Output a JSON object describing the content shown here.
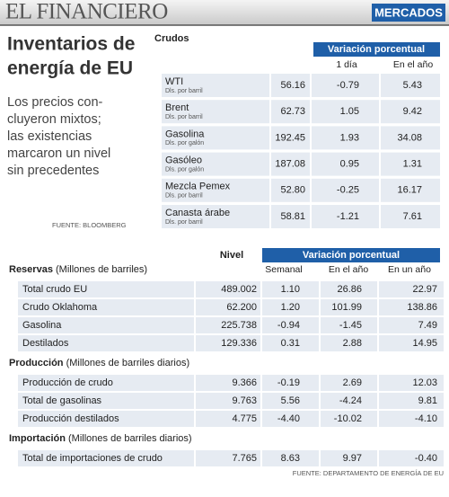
{
  "header": {
    "brand": "EL FINANCIERO",
    "section": "MERCADOS"
  },
  "title_lines": [
    "Inventarios de",
    "energía de EU"
  ],
  "description_lines": [
    "Los precios con-",
    "cluyeron mixtos;",
    "las existencias",
    "marcaron un nivel",
    "sin precedentes"
  ],
  "source_top": "FUENTE: BLOOMBERG",
  "crudos": {
    "label": "Crudos",
    "group_header": "Variación porcentual",
    "columns": [
      "1 día",
      "En el año"
    ],
    "rows": [
      {
        "name": "WTI",
        "unit": "Dls. por barril",
        "values": [
          "56.16",
          "-0.79",
          "5.43"
        ]
      },
      {
        "name": "Brent",
        "unit": "Dls. por barril",
        "values": [
          "62.73",
          "1.05",
          "9.42"
        ]
      },
      {
        "name": "Gasolina",
        "unit": "Dls. por galón",
        "values": [
          "192.45",
          "1.93",
          "34.08"
        ]
      },
      {
        "name": "Gasóleo",
        "unit": "Dls. por galón",
        "values": [
          "187.08",
          "0.95",
          "1.31"
        ]
      },
      {
        "name": "Mezcla Pemex",
        "unit": "Dls. por barril",
        "values": [
          "52.80",
          "-0.25",
          "16.17"
        ]
      },
      {
        "name": "Canasta árabe",
        "unit": "Dls. por barril",
        "values": [
          "58.81",
          "-1.21",
          "7.61"
        ]
      }
    ]
  },
  "inventarios": {
    "level_header": "Nivel",
    "group_header": "Variación porcentual",
    "columns": [
      "Semanal",
      "En el año",
      "En un año"
    ],
    "sections": [
      {
        "title": "Reservas",
        "unit": "(Millones de barriles)",
        "rows": [
          {
            "name": "Total crudo EU",
            "values": [
              "489.002",
              "1.10",
              "26.86",
              "22.97"
            ]
          },
          {
            "name": "Crudo Oklahoma",
            "values": [
              "62.200",
              "1.20",
              "101.99",
              "138.86"
            ]
          },
          {
            "name": "Gasolina",
            "values": [
              "225.738",
              "-0.94",
              "-1.45",
              "7.49"
            ]
          },
          {
            "name": "Destilados",
            "values": [
              "129.336",
              "0.31",
              "2.88",
              "14.95"
            ]
          }
        ]
      },
      {
        "title": "Producción",
        "unit": "(Millones de barriles diarios)",
        "rows": [
          {
            "name": "Producción de crudo",
            "values": [
              "9.366",
              "-0.19",
              "2.69",
              "12.03"
            ]
          },
          {
            "name": "Total de gasolinas",
            "values": [
              "9.763",
              "5.56",
              "-4.24",
              "9.81"
            ]
          },
          {
            "name": "Producción destilados",
            "values": [
              "4.775",
              "-4.40",
              "-10.02",
              "-4.10"
            ]
          }
        ]
      },
      {
        "title": "Importación",
        "unit": "(Millones de barriles diarios)",
        "rows": [
          {
            "name": "Total de importaciones de crudo",
            "values": [
              "7.765",
              "8.63",
              "9.97",
              "-0.40"
            ]
          }
        ]
      }
    ]
  },
  "source_bottom": "FUENTE: DEPARTAMENTO DE ENERGÍA DE EU"
}
